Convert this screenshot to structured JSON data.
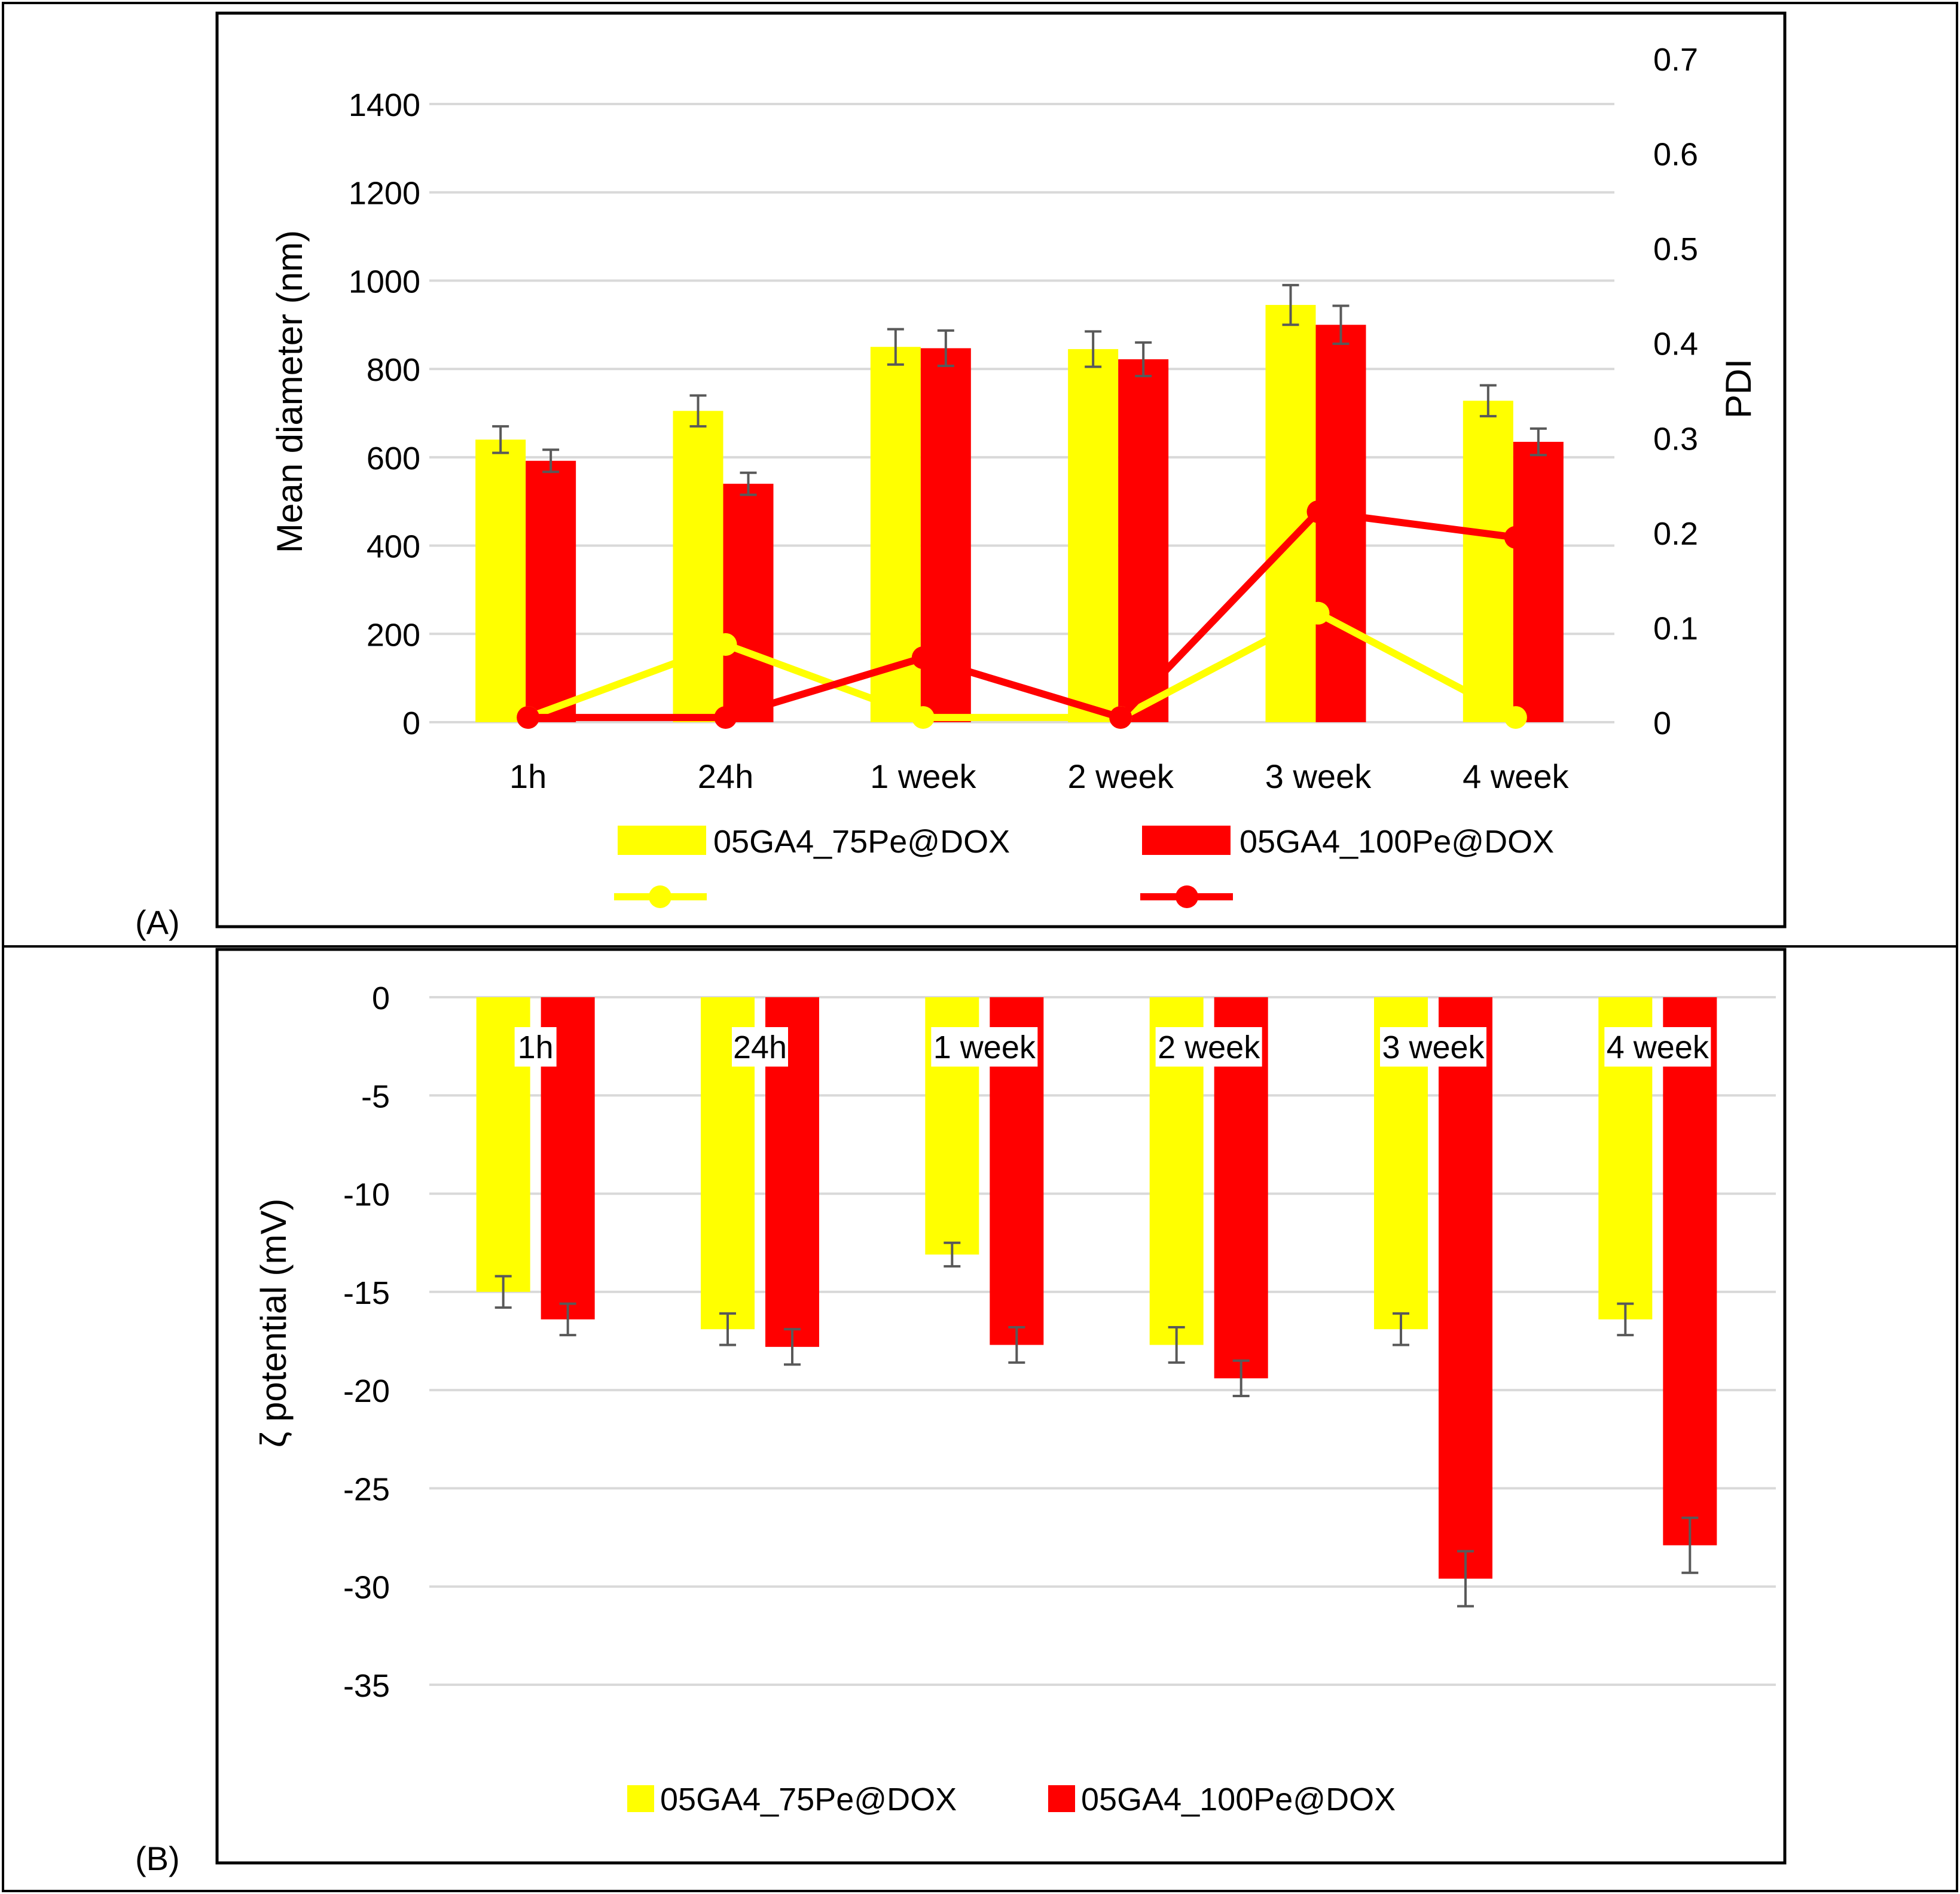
{
  "figure": {
    "panel_a_label": "(A)",
    "panel_b_label": "(B)"
  },
  "colors": {
    "yellow": "#FFFF00",
    "red": "#FF0000",
    "grid": "#D9D9D9",
    "error_bar": "#595959",
    "text": "#000000"
  },
  "chart_data": [
    {
      "id": "A",
      "type": "bar",
      "title": "",
      "categories": [
        "1h",
        "24h",
        "1 week",
        "2 week",
        "3 week",
        "4 week"
      ],
      "ylabel": "Mean  diameter  (nm)",
      "ylim": [
        0,
        1400
      ],
      "yticks": [
        0,
        200,
        400,
        600,
        800,
        1000,
        1200,
        1400
      ],
      "y2label": "PDI",
      "y2lim": [
        0,
        0.7
      ],
      "y2ticks": [
        "0",
        "0.1",
        "0.2",
        "0.3",
        "0.4",
        "0.5",
        "0.6",
        "0.7"
      ],
      "grid": true,
      "series": [
        {
          "name": "05GA4_75Pe@DOX",
          "color": "#FFFF00",
          "values": [
            640,
            705,
            850,
            845,
            945,
            728
          ],
          "errors": [
            30,
            35,
            40,
            40,
            45,
            35
          ]
        },
        {
          "name": "05GA4_100Pe@DOX",
          "color": "#FF0000",
          "values": [
            592,
            540,
            847,
            822,
            900,
            635
          ],
          "errors": [
            25,
            25,
            40,
            38,
            43,
            30
          ]
        }
      ],
      "line_series": [
        {
          "name": "",
          "axis": "secondary",
          "color": "#FFFF00",
          "values": [
            0.005,
            0.082,
            0.005,
            0.005,
            0.115,
            0.005
          ]
        },
        {
          "name": "",
          "axis": "secondary",
          "color": "#FF0000",
          "values": [
            0.005,
            0.005,
            0.068,
            0.005,
            0.222,
            0.195
          ]
        }
      ],
      "legend": "bottom"
    },
    {
      "id": "B",
      "type": "bar",
      "title": "",
      "categories": [
        "1h",
        "24h",
        "1 week",
        "2 week",
        "3 week",
        "4 week"
      ],
      "category_labels_position": "inside-top",
      "ylabel": "ζ potential (mV)",
      "ylim": [
        -35,
        0
      ],
      "yticks": [
        0,
        -5,
        -10,
        -15,
        -20,
        -25,
        -30,
        -35
      ],
      "grid": true,
      "series": [
        {
          "name": "05GA4_75Pe@DOX",
          "color": "#FFFF00",
          "values": [
            -15.0,
            -16.9,
            -13.1,
            -17.7,
            -16.9,
            -16.4
          ],
          "errors": [
            0.8,
            0.8,
            0.6,
            0.9,
            0.8,
            0.8
          ]
        },
        {
          "name": "05GA4_100Pe@DOX",
          "color": "#FF0000",
          "values": [
            -16.4,
            -17.8,
            -17.7,
            -19.4,
            -29.6,
            -27.9
          ],
          "errors": [
            0.8,
            0.9,
            0.9,
            0.9,
            1.4,
            1.4
          ]
        }
      ],
      "legend": "bottom"
    }
  ]
}
